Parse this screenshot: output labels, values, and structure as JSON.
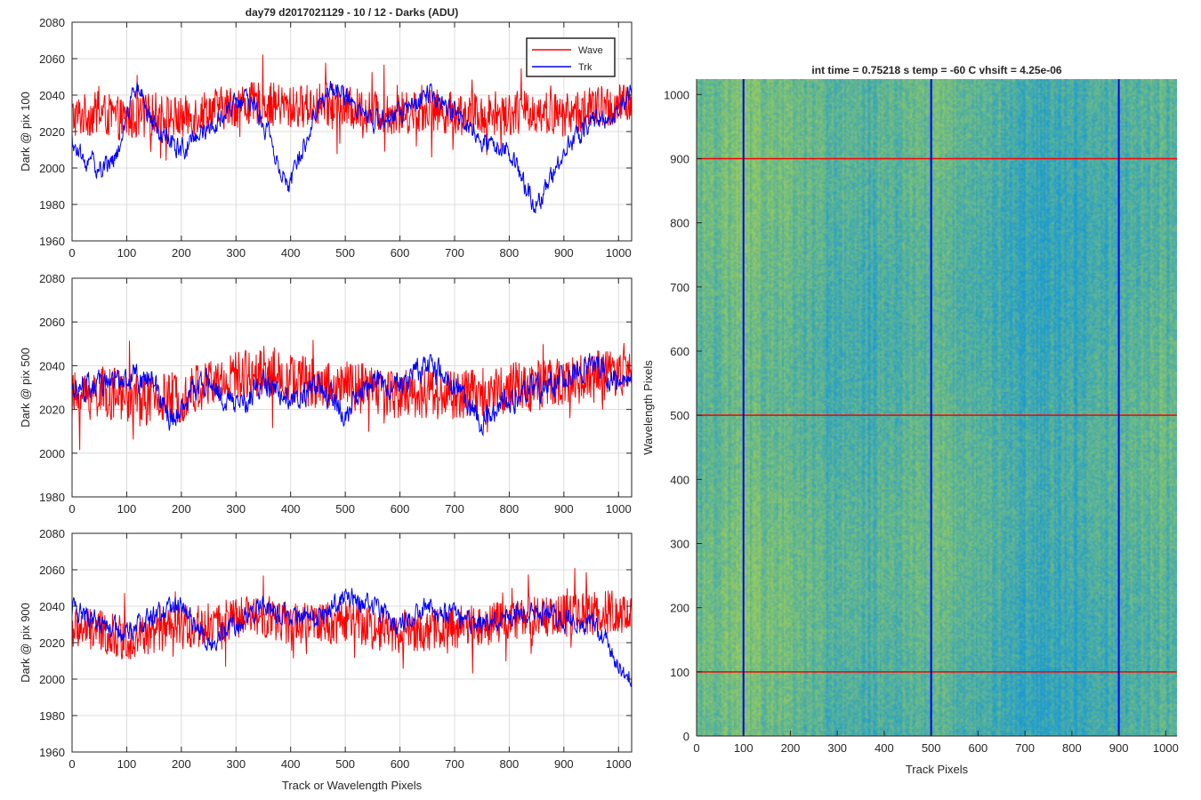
{
  "figure": {
    "line_title": "day79  d2017021129 - 10 / 12 - Darks (ADU)",
    "image_title": "int time = 0.75218 s    temp = -60 C    vhsift = 4.25e-06"
  },
  "colors": {
    "wave": "#ff0000",
    "trk": "#0000ff",
    "grid": "#dcdcdc",
    "axis": "#262626",
    "image_low": "#1a9ad4",
    "image_high": "#9ccc5a"
  },
  "chart_data": [
    {
      "type": "line",
      "id": "pix100",
      "title": "day79  d2017021129 - 10 / 12 - Darks (ADU)",
      "xlabel": "",
      "ylabel": "Dark @ pix 100",
      "xlim": [
        0,
        1024
      ],
      "ylim": [
        1960,
        2080
      ],
      "xticks": [
        0,
        100,
        200,
        300,
        400,
        500,
        600,
        700,
        800,
        900,
        1000
      ],
      "yticks": [
        1960,
        1980,
        2000,
        2020,
        2040,
        2060,
        2080
      ],
      "grid": true,
      "legend": {
        "position": "top-right",
        "entries": [
          "Wave",
          "Trk"
        ]
      },
      "series": [
        {
          "name": "Wave",
          "color": "#ff0000",
          "x": [
            0,
            50,
            100,
            150,
            200,
            250,
            300,
            350,
            400,
            450,
            500,
            550,
            600,
            650,
            700,
            750,
            800,
            850,
            900,
            950,
            1000,
            1024
          ],
          "y": [
            2028,
            2030,
            2026,
            2030,
            2027,
            2032,
            2034,
            2036,
            2033,
            2035,
            2033,
            2031,
            2030,
            2032,
            2030,
            2029,
            2030,
            2031,
            2029,
            2033,
            2034,
            2035
          ]
        },
        {
          "name": "Trk",
          "color": "#0000ff",
          "x": [
            0,
            20,
            50,
            80,
            100,
            120,
            140,
            160,
            200,
            240,
            280,
            320,
            360,
            380,
            400,
            420,
            450,
            480,
            500,
            550,
            600,
            650,
            700,
            750,
            800,
            830,
            850,
            870,
            900,
            950,
            1000,
            1024
          ],
          "y": [
            2015,
            2005,
            2000,
            2005,
            2030,
            2045,
            2030,
            2018,
            2010,
            2020,
            2030,
            2040,
            2020,
            2000,
            1990,
            2010,
            2035,
            2045,
            2040,
            2025,
            2030,
            2040,
            2030,
            2015,
            2010,
            1990,
            1980,
            1990,
            2010,
            2025,
            2030,
            2045
          ]
        }
      ]
    },
    {
      "type": "line",
      "id": "pix500",
      "title": "",
      "xlabel": "",
      "ylabel": "Dark @ pix 500",
      "xlim": [
        0,
        1024
      ],
      "ylim": [
        1980,
        2080
      ],
      "xticks": [
        0,
        100,
        200,
        300,
        400,
        500,
        600,
        700,
        800,
        900,
        1000
      ],
      "yticks": [
        1980,
        2000,
        2020,
        2040,
        2060,
        2080
      ],
      "grid": true,
      "series": [
        {
          "name": "Wave",
          "color": "#ff0000",
          "x": [
            0,
            50,
            100,
            150,
            200,
            250,
            300,
            350,
            400,
            450,
            500,
            550,
            600,
            650,
            700,
            750,
            800,
            850,
            900,
            950,
            1000,
            1024
          ],
          "y": [
            2025,
            2028,
            2026,
            2024,
            2026,
            2032,
            2035,
            2038,
            2034,
            2032,
            2030,
            2029,
            2027,
            2028,
            2026,
            2028,
            2030,
            2031,
            2032,
            2035,
            2036,
            2038
          ]
        },
        {
          "name": "Trk",
          "color": "#0000ff",
          "x": [
            0,
            50,
            100,
            150,
            180,
            200,
            250,
            300,
            350,
            400,
            450,
            500,
            550,
            600,
            650,
            700,
            750,
            800,
            850,
            900,
            950,
            1000,
            1024
          ],
          "y": [
            2030,
            2032,
            2035,
            2032,
            2015,
            2022,
            2035,
            2020,
            2032,
            2025,
            2030,
            2018,
            2035,
            2030,
            2040,
            2030,
            2015,
            2025,
            2030,
            2035,
            2040,
            2032,
            2035
          ]
        }
      ]
    },
    {
      "type": "line",
      "id": "pix900",
      "title": "",
      "xlabel": "Track or Wavelength Pixels",
      "ylabel": "Dark @ pix 900",
      "xlim": [
        0,
        1024
      ],
      "ylim": [
        1960,
        2080
      ],
      "xticks": [
        0,
        100,
        200,
        300,
        400,
        500,
        600,
        700,
        800,
        900,
        1000
      ],
      "yticks": [
        1960,
        1980,
        2000,
        2020,
        2040,
        2060,
        2080
      ],
      "grid": true,
      "series": [
        {
          "name": "Wave",
          "color": "#ff0000",
          "x": [
            0,
            50,
            100,
            150,
            200,
            250,
            300,
            350,
            400,
            450,
            500,
            550,
            600,
            650,
            700,
            750,
            800,
            850,
            900,
            950,
            1000,
            1024
          ],
          "y": [
            2028,
            2026,
            2022,
            2025,
            2028,
            2030,
            2033,
            2035,
            2030,
            2030,
            2032,
            2028,
            2026,
            2027,
            2028,
            2030,
            2032,
            2034,
            2035,
            2036,
            2037,
            2036
          ]
        },
        {
          "name": "Trk",
          "color": "#0000ff",
          "x": [
            0,
            50,
            100,
            150,
            200,
            250,
            300,
            350,
            400,
            450,
            500,
            550,
            600,
            650,
            700,
            750,
            800,
            850,
            900,
            950,
            980,
            1000,
            1024
          ],
          "y": [
            2038,
            2030,
            2025,
            2035,
            2040,
            2020,
            2030,
            2040,
            2035,
            2035,
            2045,
            2040,
            2030,
            2040,
            2035,
            2030,
            2035,
            2038,
            2032,
            2030,
            2020,
            2005,
            2000
          ]
        }
      ]
    },
    {
      "type": "heatmap",
      "id": "dark-image",
      "title": "int time = 0.75218 s    temp = -60 C    vhsift = 4.25e-06",
      "xlabel": "Track Pixels",
      "ylabel": "Wavelength Pixels",
      "xlim": [
        0,
        1024
      ],
      "ylim": [
        0,
        1024
      ],
      "xticks": [
        0,
        100,
        200,
        300,
        400,
        500,
        600,
        700,
        800,
        900,
        1000
      ],
      "yticks": [
        0,
        100,
        200,
        300,
        400,
        500,
        600,
        700,
        800,
        900,
        1000
      ],
      "colorscale": [
        "#1a9ad4",
        "#9ccc5a"
      ],
      "marker_lines": {
        "vertical_x": [
          100,
          500,
          900
        ],
        "vertical_color": "#0000ff",
        "horizontal_y": [
          100,
          500,
          900
        ],
        "horizontal_color": "#ff0000"
      }
    }
  ]
}
